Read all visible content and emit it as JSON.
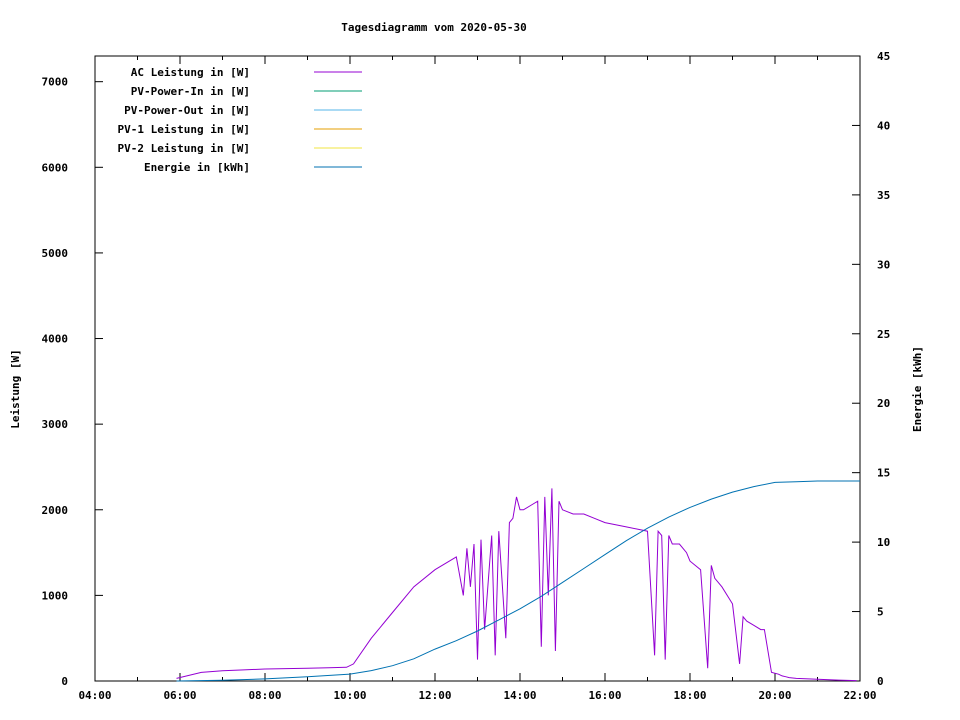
{
  "chart_data": {
    "type": "line",
    "title": "Tagesdiagramm vom 2020-05-30",
    "ylabel_left": "Leistung [W]",
    "ylabel_right": "Energie [kWh]",
    "xlabel": "",
    "x_ticks": [
      "04:00",
      "06:00",
      "08:00",
      "10:00",
      "12:00",
      "14:00",
      "16:00",
      "18:00",
      "20:00",
      "22:00"
    ],
    "y_left_ticks": [
      "0",
      "1000",
      "2000",
      "3000",
      "4000",
      "5000",
      "6000",
      "7000"
    ],
    "y_right_ticks": [
      "0",
      "5",
      "10",
      "15",
      "20",
      "25",
      "30",
      "35",
      "40",
      "45"
    ],
    "xlim": [
      "04:00",
      "22:00"
    ],
    "ylim_left": [
      0,
      7300
    ],
    "ylim_right": [
      0,
      45
    ],
    "grid": false,
    "legend_position": "top-left",
    "legend": [
      {
        "label": "AC Leistung in [W]",
        "color": "#9400d3"
      },
      {
        "label": "PV-Power-In in [W]",
        "color": "#009e73"
      },
      {
        "label": "PV-Power-Out in [W]",
        "color": "#56b4e9"
      },
      {
        "label": "PV-1 Leistung in [W]",
        "color": "#e69f00"
      },
      {
        "label": "PV-2 Leistung in [W]",
        "color": "#f0e442"
      },
      {
        "label": "Energie in [kWh]",
        "color": "#0072b2"
      }
    ],
    "series": [
      {
        "name": "AC Leistung in [W]",
        "axis": "left",
        "color": "#9400d3",
        "x": [
          "05:55",
          "06:30",
          "07:00",
          "07:30",
          "08:00",
          "08:30",
          "09:00",
          "09:30",
          "09:55",
          "10:05",
          "10:30",
          "11:00",
          "11:30",
          "12:00",
          "12:30",
          "12:40",
          "12:45",
          "12:50",
          "12:55",
          "13:00",
          "13:05",
          "13:10",
          "13:20",
          "13:25",
          "13:30",
          "13:40",
          "13:45",
          "13:50",
          "13:55",
          "14:00",
          "14:05",
          "14:15",
          "14:25",
          "14:30",
          "14:35",
          "14:40",
          "14:45",
          "14:50",
          "14:55",
          "15:00",
          "15:15",
          "15:30",
          "15:45",
          "16:00",
          "16:30",
          "17:00",
          "17:10",
          "17:15",
          "17:20",
          "17:25",
          "17:30",
          "17:35",
          "17:40",
          "17:45",
          "17:55",
          "18:00",
          "18:15",
          "18:25",
          "18:30",
          "18:35",
          "18:45",
          "19:00",
          "19:10",
          "19:15",
          "19:20",
          "19:30",
          "19:40",
          "19:45",
          "19:55",
          "20:05",
          "20:10",
          "20:15",
          "20:20",
          "20:30",
          "21:00",
          "21:30",
          "21:55"
        ],
        "values": [
          30,
          100,
          120,
          130,
          140,
          145,
          150,
          155,
          160,
          200,
          500,
          800,
          1100,
          1300,
          1450,
          1000,
          1550,
          1100,
          1600,
          250,
          1650,
          600,
          1700,
          300,
          1750,
          500,
          1850,
          1900,
          2150,
          2000,
          2000,
          2050,
          2100,
          400,
          2150,
          1000,
          2250,
          350,
          2100,
          2000,
          1950,
          1950,
          1900,
          1850,
          1800,
          1750,
          300,
          1750,
          1700,
          250,
          1700,
          1600,
          1600,
          1600,
          1500,
          1400,
          1300,
          150,
          1350,
          1200,
          1100,
          900,
          200,
          750,
          700,
          650,
          600,
          600,
          100,
          80,
          60,
          50,
          40,
          30,
          20,
          10,
          5
        ]
      },
      {
        "name": "PV-Power-In in [W]",
        "axis": "left",
        "color": "#009e73",
        "x": [],
        "values": []
      },
      {
        "name": "PV-Power-Out in [W]",
        "axis": "left",
        "color": "#56b4e9",
        "x": [],
        "values": []
      },
      {
        "name": "PV-1 Leistung in [W]",
        "axis": "left",
        "color": "#e69f00",
        "x": [],
        "values": []
      },
      {
        "name": "PV-2 Leistung in [W]",
        "axis": "left",
        "color": "#f0e442",
        "x": [],
        "values": []
      },
      {
        "name": "Energie in [kWh]",
        "axis": "right",
        "color": "#0072b2",
        "x": [
          "05:55",
          "07:00",
          "08:00",
          "09:00",
          "10:00",
          "10:30",
          "11:00",
          "11:30",
          "12:00",
          "12:30",
          "13:00",
          "13:30",
          "14:00",
          "14:30",
          "15:00",
          "15:30",
          "16:00",
          "16:30",
          "17:00",
          "17:30",
          "18:00",
          "18:30",
          "19:00",
          "19:30",
          "20:00",
          "20:30",
          "21:00",
          "21:30",
          "22:00"
        ],
        "values": [
          0,
          0.05,
          0.15,
          0.3,
          0.5,
          0.75,
          1.1,
          1.6,
          2.3,
          2.9,
          3.6,
          4.4,
          5.2,
          6.1,
          7.1,
          8.1,
          9.1,
          10.1,
          11.0,
          11.8,
          12.5,
          13.1,
          13.6,
          14.0,
          14.3,
          14.35,
          14.4,
          14.4,
          14.4
        ]
      }
    ]
  }
}
